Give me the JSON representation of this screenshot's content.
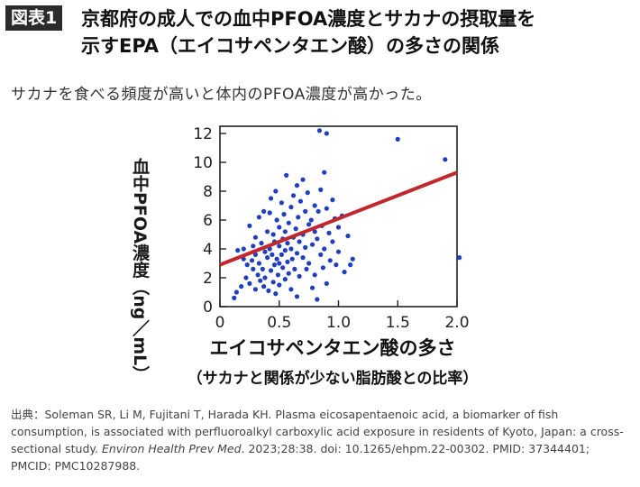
{
  "header": {
    "badge": "図表1",
    "title_line1": "京都府の成人での血中PFOA濃度とサカナの摂取量を",
    "title_line2": "示すEPA（エイコサペンタエン酸）の多さの関係"
  },
  "subtitle": "サカナを食べる頻度が高いと体内のPFOA濃度が高かった。",
  "chart_data": {
    "type": "scatter",
    "ylabel": "血中PFOA濃度（ng／mL）",
    "xlabel": "エイコサペンタエン酸の多さ",
    "xsublabel": "（サカナと関係が少ない脂肪酸との比率）",
    "xlim": [
      0,
      2.0
    ],
    "ylim": [
      0,
      12.5
    ],
    "xticks": [
      "0",
      "0.5",
      "1.0",
      "1.5",
      "2.0"
    ],
    "yticks": [
      "0",
      "2",
      "4",
      "6",
      "8",
      "10",
      "12"
    ],
    "point_color": "#1f3fbf",
    "line_color": "#c0282d",
    "trend_line": {
      "x": [
        0,
        2.0
      ],
      "y": [
        2.9,
        9.3
      ]
    },
    "points": [
      [
        0.12,
        0.6
      ],
      [
        0.14,
        1.0
      ],
      [
        0.15,
        3.9
      ],
      [
        0.18,
        1.4
      ],
      [
        0.2,
        3.3
      ],
      [
        0.2,
        4.0
      ],
      [
        0.22,
        2.0
      ],
      [
        0.23,
        2.9
      ],
      [
        0.25,
        1.6
      ],
      [
        0.25,
        5.6
      ],
      [
        0.27,
        3.2
      ],
      [
        0.28,
        4.2
      ],
      [
        0.28,
        2.6
      ],
      [
        0.3,
        1.2
      ],
      [
        0.3,
        3.6
      ],
      [
        0.3,
        4.8
      ],
      [
        0.32,
        2.2
      ],
      [
        0.33,
        6.2
      ],
      [
        0.33,
        3.0
      ],
      [
        0.34,
        1.8
      ],
      [
        0.35,
        4.4
      ],
      [
        0.36,
        2.6
      ],
      [
        0.37,
        6.6
      ],
      [
        0.37,
        1.4
      ],
      [
        0.38,
        3.8
      ],
      [
        0.38,
        2.0
      ],
      [
        0.4,
        5.2
      ],
      [
        0.4,
        3.4
      ],
      [
        0.41,
        1.1
      ],
      [
        0.42,
        4.0
      ],
      [
        0.42,
        6.5
      ],
      [
        0.43,
        2.5
      ],
      [
        0.43,
        7.5
      ],
      [
        0.44,
        3.6
      ],
      [
        0.45,
        1.7
      ],
      [
        0.45,
        5.0
      ],
      [
        0.46,
        2.9
      ],
      [
        0.46,
        4.5
      ],
      [
        0.47,
        8.0
      ],
      [
        0.47,
        0.9
      ],
      [
        0.48,
        3.3
      ],
      [
        0.48,
        6.0
      ],
      [
        0.49,
        2.2
      ],
      [
        0.5,
        4.2
      ],
      [
        0.5,
        3.0
      ],
      [
        0.5,
        5.5
      ],
      [
        0.5,
        1.5
      ],
      [
        0.52,
        3.6
      ],
      [
        0.52,
        7.2
      ],
      [
        0.53,
        4.7
      ],
      [
        0.53,
        2.7
      ],
      [
        0.54,
        6.4
      ],
      [
        0.55,
        3.9
      ],
      [
        0.55,
        1.9
      ],
      [
        0.55,
        5.2
      ],
      [
        0.56,
        9.1
      ],
      [
        0.57,
        4.4
      ],
      [
        0.57,
        3.1
      ],
      [
        0.58,
        2.3
      ],
      [
        0.58,
        5.8
      ],
      [
        0.6,
        4.0
      ],
      [
        0.6,
        6.9
      ],
      [
        0.6,
        1.2
      ],
      [
        0.61,
        3.3
      ],
      [
        0.62,
        7.7
      ],
      [
        0.62,
        4.8
      ],
      [
        0.63,
        2.6
      ],
      [
        0.64,
        5.4
      ],
      [
        0.65,
        8.4
      ],
      [
        0.65,
        3.7
      ],
      [
        0.65,
        0.7
      ],
      [
        0.66,
        6.2
      ],
      [
        0.67,
        4.5
      ],
      [
        0.67,
        2.1
      ],
      [
        0.68,
        7.3
      ],
      [
        0.7,
        5.0
      ],
      [
        0.7,
        3.4
      ],
      [
        0.7,
        8.8
      ],
      [
        0.72,
        6.6
      ],
      [
        0.72,
        4.1
      ],
      [
        0.73,
        2.6
      ],
      [
        0.74,
        7.9
      ],
      [
        0.75,
        5.7
      ],
      [
        0.75,
        3.0
      ],
      [
        0.77,
        6.0
      ],
      [
        0.78,
        4.3
      ],
      [
        0.78,
        1.3
      ],
      [
        0.8,
        7.0
      ],
      [
        0.8,
        5.2
      ],
      [
        0.8,
        2.2
      ],
      [
        0.82,
        4.7
      ],
      [
        0.82,
        0.5
      ],
      [
        0.83,
        6.6
      ],
      [
        0.84,
        12.2
      ],
      [
        0.85,
        3.6
      ],
      [
        0.85,
        8.1
      ],
      [
        0.86,
        5.6
      ],
      [
        0.87,
        2.7
      ],
      [
        0.88,
        9.3
      ],
      [
        0.88,
        4.0
      ],
      [
        0.9,
        6.8
      ],
      [
        0.9,
        1.6
      ],
      [
        0.9,
        12.0
      ],
      [
        0.92,
        5.1
      ],
      [
        0.93,
        3.2
      ],
      [
        0.95,
        7.4
      ],
      [
        0.95,
        4.5
      ],
      [
        0.97,
        6.1
      ],
      [
        0.98,
        2.9
      ],
      [
        1.0,
        5.5
      ],
      [
        1.0,
        3.8
      ],
      [
        1.03,
        6.3
      ],
      [
        1.05,
        2.4
      ],
      [
        1.08,
        4.9
      ],
      [
        1.1,
        2.9
      ],
      [
        1.12,
        3.3
      ],
      [
        1.5,
        11.6
      ],
      [
        1.9,
        10.2
      ],
      [
        2.02,
        3.4
      ]
    ]
  },
  "source": {
    "prefix": "出典：Soleman SR, Li M, Fujitani T, Harada KH. Plasma eicosapentaenoic acid, a biomarker of fish consumption, is associated with perfluoroalkyl carboxylic acid exposure in residents of Kyoto, Japan: a cross-sectional study. ",
    "journal": "Environ Health Prev Med",
    "suffix": ". 2023;28:38. doi: 10.1265/ehpm.22-00302. PMID: 37344401; PMCID: PMC10287988."
  }
}
